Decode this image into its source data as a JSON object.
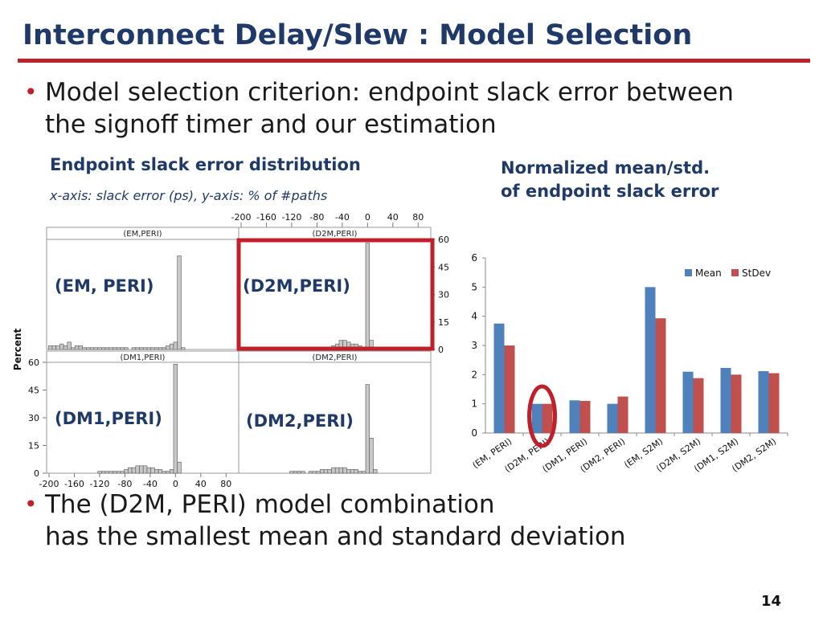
{
  "slide": {
    "title": "Interconnect Delay/Slew : Model Selection",
    "bullet1_line1": "Model selection criterion: endpoint slack error between",
    "bullet1_line2": "the signoff timer and our estimation",
    "bullet2_line1": "The (D2M, PERI) model combination",
    "bullet2_line2": "has the smallest mean and standard deviation",
    "page_number": "14"
  },
  "left_panel": {
    "heading": "Endpoint slack error distribution",
    "axis_note": "x-axis: slack error (ps), y-axis: % of #paths",
    "tags": [
      "(EM, PERI)",
      "(D2M,PERI)",
      "(DM1,PERI)",
      "(DM2,PERI)"
    ]
  },
  "right_panel": {
    "heading_line1": "Normalized mean/std.",
    "heading_line2": "of endpoint slack error"
  },
  "chart_data": [
    {
      "type": "bar",
      "description_free": true,
      "xlabel": "",
      "ylabel": "Percent",
      "x_ticks": [
        "-200",
        "-160",
        "-120",
        "-80",
        "-40",
        "0",
        "40",
        "80"
      ],
      "y_ticks": [
        "0",
        "15",
        "30",
        "45",
        "60"
      ],
      "xlim": [
        -200,
        100
      ],
      "ylim": [
        0,
        60
      ],
      "panels": [
        {
          "name": "(EM,PERI)",
          "bins": [
            -198,
            -192,
            -186,
            -180,
            -174,
            -168,
            -162,
            -156,
            -150,
            -144,
            -138,
            -132,
            -126,
            -120,
            -114,
            -108,
            -102,
            -96,
            -90,
            -84,
            -78,
            -72,
            -66,
            -60,
            -54,
            -48,
            -42,
            -36,
            -30,
            -24,
            -18,
            -12,
            -6,
            0,
            6,
            12,
            18,
            24
          ],
          "values": [
            2,
            2,
            2,
            3,
            2,
            4,
            1,
            2,
            2,
            1,
            1,
            1,
            1,
            1,
            1,
            1,
            1,
            1,
            1,
            1,
            1,
            0,
            1,
            1,
            1,
            1,
            1,
            1,
            1,
            1,
            1,
            2,
            3,
            4,
            51,
            1,
            0,
            0
          ]
        },
        {
          "name": "(D2M,PERI)",
          "bins": [
            -90,
            -84,
            -78,
            -72,
            -66,
            -60,
            -54,
            -48,
            -42,
            -36,
            -30,
            -24,
            -18,
            -12,
            -6,
            0,
            6,
            12
          ],
          "values": [
            0,
            1,
            1,
            1,
            1,
            1,
            2,
            3,
            5,
            5,
            4,
            3,
            3,
            2,
            1,
            58,
            5,
            1
          ]
        },
        {
          "name": "(DM1,PERI)",
          "bins": [
            -126,
            -120,
            -114,
            -108,
            -102,
            -96,
            -90,
            -84,
            -78,
            -72,
            -66,
            -60,
            -54,
            -48,
            -42,
            -36,
            -30,
            -24,
            -18,
            -12,
            -6,
            0,
            6
          ],
          "values": [
            0,
            1,
            1,
            1,
            1,
            1,
            1,
            1,
            2,
            3,
            3,
            4,
            4,
            4,
            3,
            3,
            2,
            2,
            1,
            1,
            2,
            59,
            6
          ]
        },
        {
          "name": "(DM2,PERI)",
          "bins": [
            -120,
            -114,
            -108,
            -102,
            -96,
            -90,
            -84,
            -78,
            -72,
            -66,
            -60,
            -54,
            -48,
            -42,
            -36,
            -30,
            -24,
            -18,
            -12,
            -6,
            0,
            6,
            12
          ],
          "values": [
            1,
            1,
            1,
            1,
            0,
            1,
            1,
            1,
            2,
            2,
            2,
            3,
            3,
            3,
            3,
            2,
            2,
            2,
            1,
            1,
            48,
            19,
            2
          ]
        }
      ]
    },
    {
      "type": "bar",
      "categories": [
        "(EM, PERI)",
        "(D2M, PERI)",
        "(DM1, PERI)",
        "(DM2, PERI)",
        "(EM, S2M)",
        "(D2M, S2M)",
        "(DM1, S2M)",
        "(DM2, S2M)"
      ],
      "series": [
        {
          "name": "Mean",
          "values": [
            3.75,
            1.0,
            1.12,
            1.0,
            5.0,
            2.1,
            2.23,
            2.12
          ],
          "color": "#4f81bd"
        },
        {
          "name": "StDev",
          "values": [
            3.0,
            1.0,
            1.1,
            1.25,
            3.93,
            1.88,
            2.0,
            2.05
          ],
          "color": "#c0504d"
        }
      ],
      "y_ticks": [
        "0",
        "1",
        "2",
        "3",
        "4",
        "5",
        "6"
      ],
      "ylim": [
        0,
        6
      ],
      "legend": "top-right",
      "grid": false
    }
  ],
  "colors": {
    "title": "#1f3a68",
    "accent": "#c0202a",
    "histogram_fill": "#c8c8c8",
    "histogram_stroke": "#555555"
  }
}
